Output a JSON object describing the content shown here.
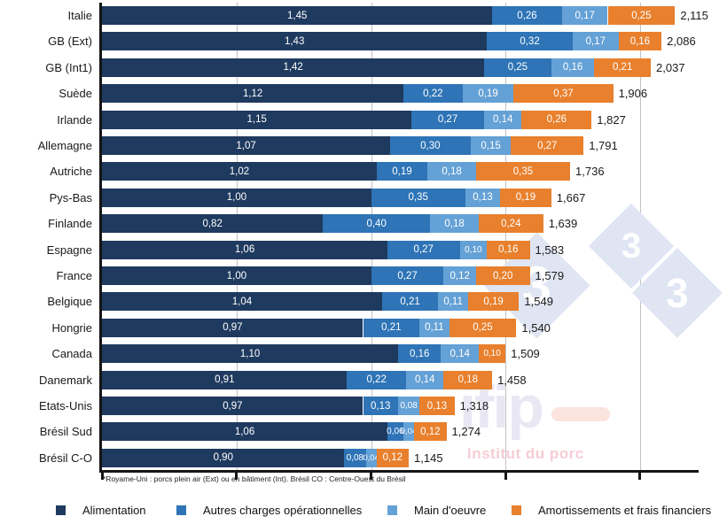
{
  "chart_data": {
    "type": "bar",
    "orientation": "horizontal",
    "stacked": true,
    "xlim": [
      0,
      2.2
    ],
    "x_gridlines": [
      0.5,
      1.0,
      1.5,
      2.0
    ],
    "x_ticks": [
      0,
      0.5,
      1.0,
      1.5,
      2.0
    ],
    "grid": true,
    "legend_position": "bottom",
    "categories": [
      "Italie",
      "GB (Ext)",
      "GB (Int1)",
      "Suède",
      "Irlande",
      "Allemagne",
      "Autriche",
      "Pys-Bas",
      "Finlande",
      "Espagne",
      "France",
      "Belgique",
      "Hongrie",
      "Canada",
      "Danemark",
      "Etats-Unis",
      "Brésil Sud",
      "Brésil C-O"
    ],
    "series": [
      {
        "name": "Alimentation",
        "color": "#1f3a5f",
        "values": [
          1.45,
          1.43,
          1.42,
          1.12,
          1.15,
          1.07,
          1.02,
          1.0,
          0.82,
          1.06,
          1.0,
          1.04,
          0.97,
          1.1,
          0.91,
          0.97,
          1.06,
          0.9
        ]
      },
      {
        "name": "Autres charges opérationnelles",
        "color": "#2e74b6",
        "values": [
          0.26,
          0.32,
          0.25,
          0.22,
          0.27,
          0.3,
          0.19,
          0.35,
          0.4,
          0.27,
          0.27,
          0.21,
          0.21,
          0.16,
          0.22,
          0.13,
          0.06,
          0.08
        ]
      },
      {
        "name": "Main d'oeuvre",
        "color": "#64a1d6",
        "values": [
          0.17,
          0.17,
          0.16,
          0.19,
          0.14,
          0.15,
          0.18,
          0.13,
          0.18,
          0.1,
          0.12,
          0.11,
          0.11,
          0.14,
          0.14,
          0.08,
          0.04,
          0.04
        ]
      },
      {
        "name": "Amortissements et frais financiers",
        "color": "#e8802d",
        "values": [
          0.25,
          0.16,
          0.21,
          0.37,
          0.26,
          0.27,
          0.35,
          0.19,
          0.24,
          0.16,
          0.2,
          0.19,
          0.25,
          0.1,
          0.18,
          0.13,
          0.12,
          0.12
        ]
      }
    ],
    "totals": [
      2.115,
      2.086,
      2.037,
      1.906,
      1.827,
      1.791,
      1.736,
      1.667,
      1.639,
      1.583,
      1.579,
      1.549,
      1.54,
      1.509,
      1.458,
      1.318,
      1.274,
      1.145
    ],
    "footnote": "*Royame-Uni : porcs plein air (Ext) ou en bâtiment (Int). Brésil CO : Centre-Ouest du Brésil"
  },
  "watermark": {
    "three": "3",
    "ifip": "ifip",
    "institut": "Institut du porc"
  },
  "colors": {
    "axis": "#151515",
    "gridline": "#c2c2c2",
    "segment_label": "#ffffff",
    "total_label": "#1a1a1a",
    "watermark_diamond": "#dfe5f2"
  }
}
